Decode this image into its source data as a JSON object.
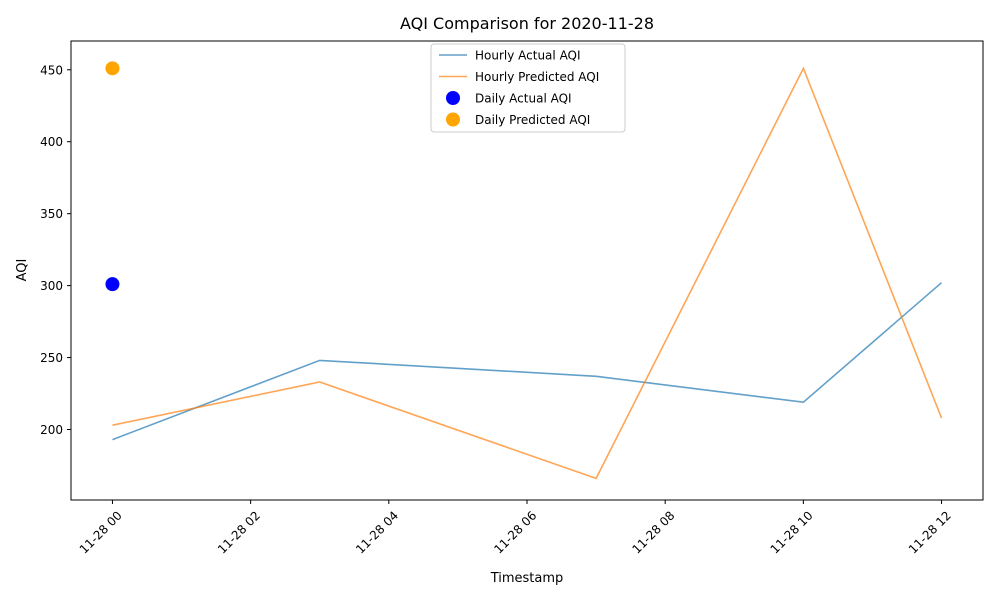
{
  "chart_data": {
    "type": "line",
    "title": "AQI Comparison for 2020-11-28",
    "xlabel": "Timestamp",
    "ylabel": "AQI",
    "x_ticks": [
      "11-28 00",
      "11-28 02",
      "11-28 04",
      "11-28 06",
      "11-28 08",
      "11-28 10",
      "11-28 12"
    ],
    "x_tick_hours": [
      0,
      2,
      4,
      6,
      8,
      10,
      12
    ],
    "y_ticks": [
      200,
      250,
      300,
      350,
      400,
      450
    ],
    "xlim_hours": [
      -0.6,
      12.6
    ],
    "ylim": [
      151,
      470
    ],
    "grid": false,
    "legend_position": "top-center",
    "series": [
      {
        "name": "Hourly Actual AQI",
        "kind": "line",
        "color": "#1f77b4",
        "opacity": 0.7,
        "x_hours": [
          0,
          3,
          7,
          10,
          12
        ],
        "values": [
          193,
          248,
          237,
          219,
          302
        ]
      },
      {
        "name": "Hourly Predicted AQI",
        "kind": "line",
        "color": "#ff7f0e",
        "opacity": 0.7,
        "x_hours": [
          0,
          3,
          7,
          10,
          12
        ],
        "values": [
          203,
          233,
          166,
          451,
          208
        ]
      },
      {
        "name": "Daily Actual AQI",
        "kind": "scatter",
        "color": "#0000ff",
        "x_hours": [
          0
        ],
        "values": [
          301
        ]
      },
      {
        "name": "Daily Predicted AQI",
        "kind": "scatter",
        "color": "#ffa500",
        "x_hours": [
          0
        ],
        "values": [
          451
        ]
      }
    ]
  }
}
